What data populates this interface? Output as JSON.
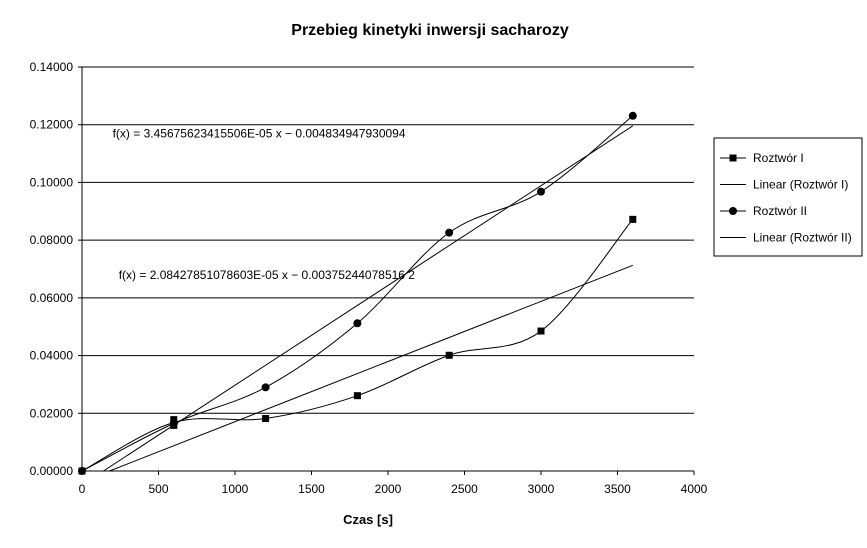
{
  "chart_data": {
    "type": "scatter",
    "title": "Przebieg kinetyki inwersji sacharozy",
    "xlabel": "Czas [s]",
    "ylabel": "",
    "xlim": [
      0,
      4000
    ],
    "ylim": [
      0,
      0.14
    ],
    "x_ticks": [
      "0",
      "500",
      "1000",
      "1500",
      "2000",
      "2500",
      "3000",
      "3500",
      "4000"
    ],
    "y_ticks": [
      "0.00000",
      "0.02000",
      "0.04000",
      "0.06000",
      "0.08000",
      "0.10000",
      "0.12000",
      "0.14000"
    ],
    "grid": "horizontal",
    "legend_position": "right",
    "series": [
      {
        "name": "Roztwór I",
        "marker": "square",
        "x": [
          0,
          600,
          600,
          1200,
          1800,
          2400,
          3000,
          3600
        ],
        "y": [
          0.0,
          0.0158,
          0.0178,
          0.0182,
          0.0261,
          0.0401,
          0.0485,
          0.0872
        ]
      },
      {
        "name": "Roztwór II",
        "marker": "circle",
        "x": [
          0,
          600,
          1200,
          1800,
          2400,
          3000,
          3600
        ],
        "y": [
          0.0,
          0.0165,
          0.029,
          0.0512,
          0.0826,
          0.0968,
          0.1231
        ]
      }
    ],
    "trendlines": [
      {
        "name": "Linear (Roztwór I)",
        "slope": 2.08427851078603e-05,
        "intercept": -0.00375244078516,
        "x_range": [
          180,
          3600
        ]
      },
      {
        "name": "Linear (Roztwór II)",
        "slope": 3.45675623415506e-05,
        "intercept": -0.004834947930094,
        "x_range": [
          140,
          3600
        ]
      }
    ],
    "annotations": [
      {
        "text": "f(x) = 3.45675623415506E-05 x − 0.004834947930094",
        "x": 200,
        "y": 0.1155
      },
      {
        "text": "f(x) = 2.08427851078603E-05 x − 0.00375244078516 2",
        "x": 240,
        "y": 0.0665
      }
    ]
  }
}
